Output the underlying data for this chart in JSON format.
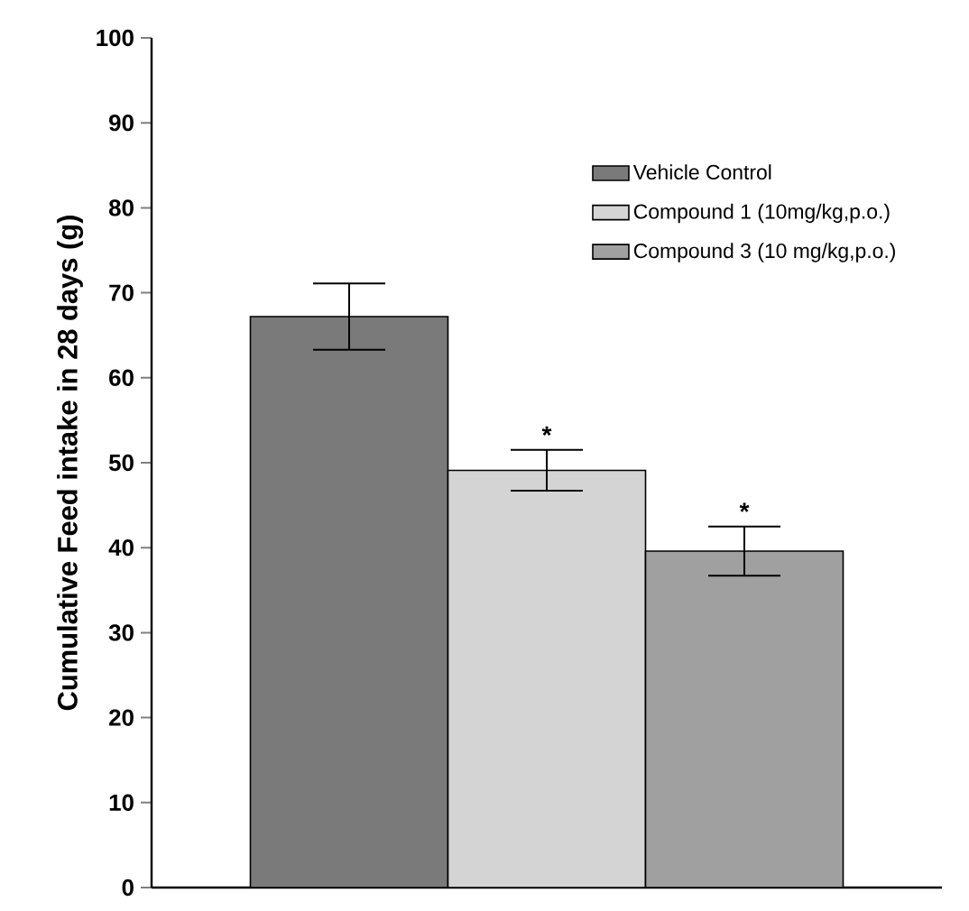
{
  "chart_data": {
    "type": "bar",
    "ylabel": "Cumulative Feed intake in 28 days (g)",
    "categories": [
      null
    ],
    "series": [
      {
        "name": "Vehicle Control",
        "color": "#7a7a7a",
        "values": [
          67.2
        ],
        "errors": [
          3.9
        ]
      },
      {
        "name": "Compound 1 (10mg/kg,p.o.)",
        "color": "#d4d4d4",
        "values": [
          49.1
        ],
        "errors": [
          2.4
        ]
      },
      {
        "name": "Compound 3 (10 mg/kg,p.o.)",
        "color": "#a0a0a0",
        "values": [
          39.6
        ],
        "errors": [
          2.9
        ]
      }
    ],
    "ylim": [
      0,
      100
    ],
    "yticks": [
      0,
      10,
      20,
      30,
      40,
      50,
      60,
      70,
      80,
      90,
      100
    ],
    "annotations": [
      "*",
      "*"
    ],
    "legend": "top right",
    "grid": false
  }
}
